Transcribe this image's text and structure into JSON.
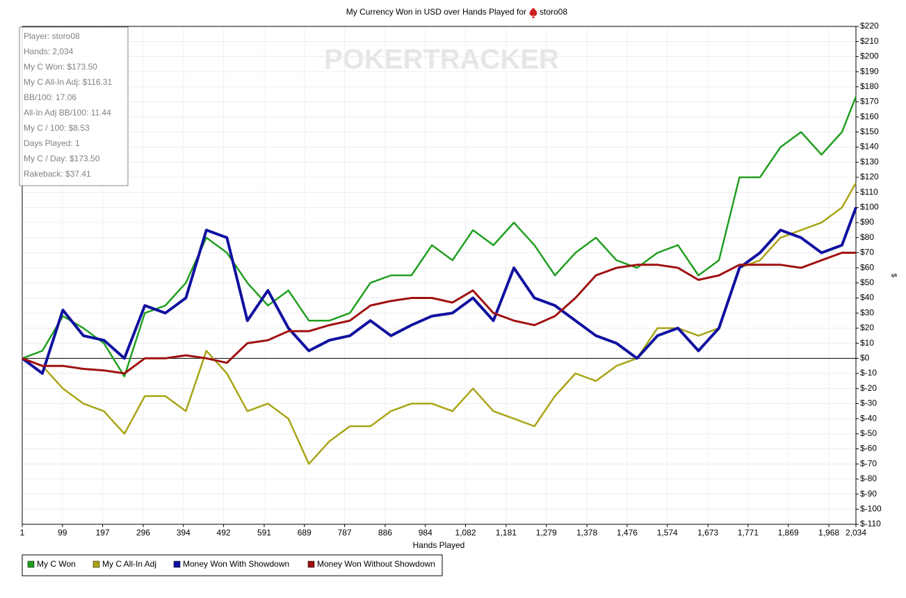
{
  "chart_data": {
    "type": "line",
    "title": "My Currency Won in USD over Hands Played for",
    "title_player": "storo08",
    "watermark": "POKERTRACKER",
    "info": [
      "Player: storo08",
      "Hands: 2,034",
      "My C Won: $173.50",
      "My C All-In Adj: $116.31",
      "BB/100: 17.06",
      "All-In Adj BB/100: 11.44",
      "My C / 100: $8.53",
      "Days Played: 1",
      "My C / Day: $173.50",
      "Rakeback: $37.41"
    ],
    "x_label": "Hands Played",
    "y_label": "$",
    "grid": true,
    "legend": "bottom-left",
    "xlim": [
      1,
      2034
    ],
    "xticks": [
      1,
      99,
      197,
      296,
      394,
      492,
      591,
      689,
      787,
      886,
      984,
      {
        "value": 1082,
        "label": "1,082"
      },
      {
        "value": 1181,
        "label": "1,181"
      },
      {
        "value": 1279,
        "label": "1,279"
      },
      {
        "value": 1378,
        "label": "1,378"
      },
      {
        "value": 1476,
        "label": "1,476"
      },
      {
        "value": 1574,
        "label": "1,574"
      },
      {
        "value": 1673,
        "label": "1,673"
      },
      {
        "value": 1771,
        "label": "1,771"
      },
      {
        "value": 1869,
        "label": "1,869"
      },
      {
        "value": 1968,
        "label": "1,968"
      },
      {
        "value": 2034,
        "label": "2,034"
      }
    ],
    "ylim": [
      -110,
      220
    ],
    "yticks": [
      {
        "value": 220,
        "label": "$220"
      },
      {
        "value": 210,
        "label": "$210"
      },
      {
        "value": 200,
        "label": "$200"
      },
      {
        "value": 190,
        "label": "$190"
      },
      {
        "value": 180,
        "label": "$180"
      },
      {
        "value": 170,
        "label": "$170"
      },
      {
        "value": 160,
        "label": "$160"
      },
      {
        "value": 150,
        "label": "$150"
      },
      {
        "value": 140,
        "label": "$140"
      },
      {
        "value": 130,
        "label": "$130"
      },
      {
        "value": 120,
        "label": "$120"
      },
      {
        "value": 110,
        "label": "$110"
      },
      {
        "value": 100,
        "label": "$100"
      },
      {
        "value": 90,
        "label": "$90"
      },
      {
        "value": 80,
        "label": "$80"
      },
      {
        "value": 70,
        "label": "$70"
      },
      {
        "value": 60,
        "label": "$60"
      },
      {
        "value": 50,
        "label": "$50"
      },
      {
        "value": 40,
        "label": "$40"
      },
      {
        "value": 30,
        "label": "$30"
      },
      {
        "value": 20,
        "label": "$20"
      },
      {
        "value": 10,
        "label": "$10"
      },
      {
        "value": 0,
        "label": "$0"
      },
      {
        "value": -10,
        "label": "$-10"
      },
      {
        "value": -20,
        "label": "$-20"
      },
      {
        "value": -30,
        "label": "$-30"
      },
      {
        "value": -40,
        "label": "$-40"
      },
      {
        "value": -50,
        "label": "$-50"
      },
      {
        "value": -60,
        "label": "$-60"
      },
      {
        "value": -70,
        "label": "$-70"
      },
      {
        "value": -80,
        "label": "$-80"
      },
      {
        "value": -90,
        "label": "$-90"
      },
      {
        "value": -100,
        "label": "$-100"
      },
      {
        "value": -110,
        "label": "$-110"
      }
    ],
    "x": [
      1,
      50,
      100,
      150,
      200,
      250,
      300,
      350,
      400,
      450,
      500,
      550,
      600,
      650,
      700,
      750,
      800,
      850,
      900,
      950,
      1000,
      1050,
      1100,
      1150,
      1200,
      1250,
      1300,
      1350,
      1400,
      1450,
      1500,
      1550,
      1600,
      1650,
      1700,
      1750,
      1800,
      1850,
      1900,
      1950,
      2000,
      2034
    ],
    "series": [
      {
        "name": "My C Won",
        "color": "#1f9e1f",
        "values": [
          0,
          5,
          28,
          20,
          10,
          -12,
          30,
          35,
          50,
          80,
          70,
          50,
          35,
          45,
          25,
          25,
          30,
          50,
          55,
          55,
          75,
          65,
          85,
          75,
          90,
          75,
          55,
          70,
          80,
          65,
          60,
          70,
          75,
          55,
          65,
          120,
          120,
          140,
          150,
          135,
          150,
          173.5
        ]
      },
      {
        "name": "My C All-In Adj",
        "color": "#a8a414",
        "values": [
          0,
          -5,
          -20,
          -30,
          -35,
          -50,
          -25,
          -25,
          -35,
          5,
          -10,
          -35,
          -30,
          -40,
          -70,
          -55,
          -45,
          -45,
          -35,
          -30,
          -30,
          -35,
          -20,
          -35,
          -40,
          -45,
          -25,
          -10,
          -15,
          -5,
          0,
          20,
          20,
          15,
          20,
          60,
          65,
          80,
          85,
          90,
          100,
          116.31
        ]
      },
      {
        "name": "Money Won With Showdown",
        "color": "#1010a0",
        "values": [
          0,
          -10,
          32,
          15,
          12,
          0,
          35,
          30,
          40,
          85,
          80,
          25,
          45,
          20,
          5,
          12,
          15,
          25,
          15,
          22,
          28,
          30,
          40,
          25,
          60,
          40,
          35,
          25,
          15,
          10,
          0,
          15,
          20,
          5,
          20,
          60,
          70,
          85,
          80,
          70,
          75,
          100
        ]
      },
      {
        "name": "Money Won Without Showdown",
        "color": "#a01010",
        "values": [
          0,
          -5,
          -5,
          -7,
          -8,
          -10,
          0,
          0,
          2,
          0,
          -3,
          10,
          12,
          18,
          18,
          22,
          25,
          35,
          38,
          40,
          40,
          37,
          45,
          30,
          25,
          22,
          28,
          40,
          55,
          60,
          62,
          62,
          60,
          52,
          55,
          62,
          62,
          62,
          60,
          65,
          70,
          70
        ]
      }
    ]
  }
}
